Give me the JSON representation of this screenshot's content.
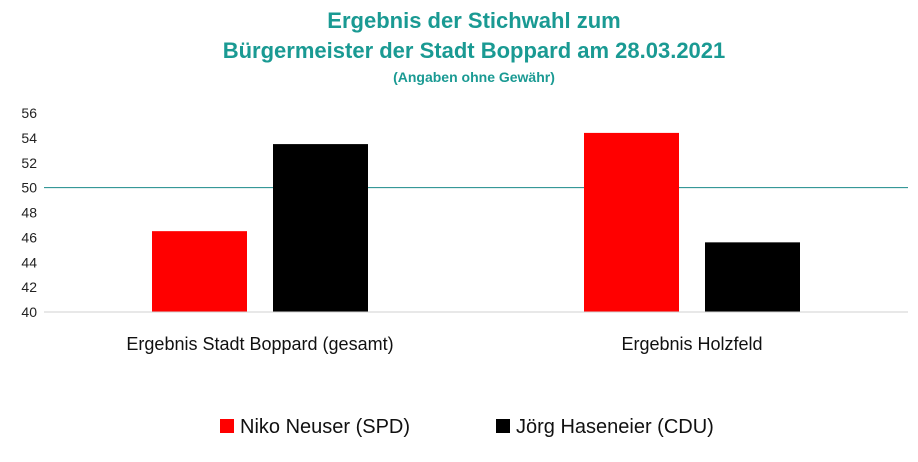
{
  "chart_data": {
    "type": "bar",
    "title_line1": "Ergebnis der Stichwahl zum",
    "title_line2": "Bürgermeister der Stadt Boppard am 28.03.2021",
    "subtitle": "(Angaben ohne Gewähr)",
    "categories": [
      "Ergebnis Stadt Boppard (gesamt)",
      "Ergebnis Holzfeld"
    ],
    "series": [
      {
        "name": "Niko Neuser (SPD)",
        "color": "#ff0000",
        "values": [
          46.5,
          54.4
        ]
      },
      {
        "name": "Jörg Haseneier (CDU)",
        "color": "#000000",
        "values": [
          53.5,
          45.6
        ]
      }
    ],
    "ylim": [
      40,
      56
    ],
    "yticks": [
      40,
      42,
      44,
      46,
      48,
      50,
      52,
      54,
      56
    ],
    "reference_line": {
      "value": 50,
      "color": "#1a8a8a"
    },
    "grid": false,
    "legend_position": "bottom",
    "xlabel": "",
    "ylabel": ""
  }
}
